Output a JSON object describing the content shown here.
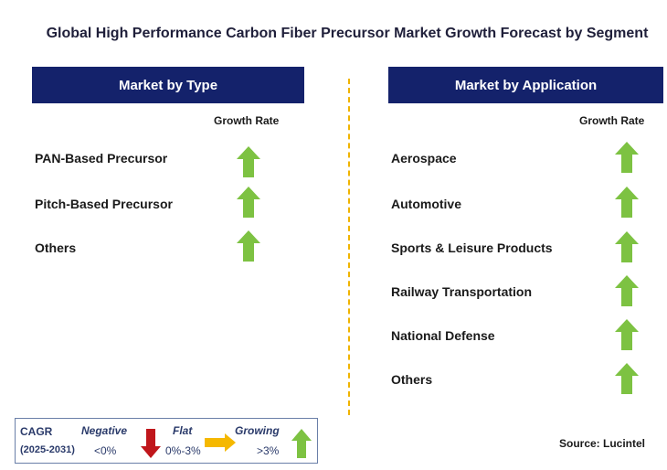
{
  "title": "Global High Performance Carbon Fiber Precursor Market Growth Forecast by Segment",
  "type_section": {
    "header": "Market by Type",
    "growth_label": "Growth Rate",
    "items": [
      {
        "label": "PAN-Based Precursor",
        "trend": "growing"
      },
      {
        "label": "Pitch-Based Precursor",
        "trend": "growing"
      },
      {
        "label": "Others",
        "trend": "growing"
      }
    ]
  },
  "application_section": {
    "header": "Market by Application",
    "growth_label": "Growth Rate",
    "items": [
      {
        "label": "Aerospace",
        "trend": "growing"
      },
      {
        "label": "Automotive",
        "trend": "growing"
      },
      {
        "label": "Sports & Leisure Products",
        "trend": "growing"
      },
      {
        "label": "Railway Transportation",
        "trend": "growing"
      },
      {
        "label": "National Defense",
        "trend": "growing"
      },
      {
        "label": "Others",
        "trend": "growing"
      }
    ]
  },
  "legend": {
    "cagr_label": "CAGR",
    "years": "(2025-2031)",
    "negative": {
      "label": "Negative",
      "range": "<0%"
    },
    "flat": {
      "label": "Flat",
      "range": "0%-3%"
    },
    "growing": {
      "label": "Growing",
      "range": ">3%"
    }
  },
  "source": "Source: Lucintel",
  "colors": {
    "header_bg": "#14226b",
    "growing_arrow": "#7dc242",
    "negative_arrow": "#c0161b",
    "flat_arrow": "#f5b800",
    "divider": "#f0b400"
  }
}
